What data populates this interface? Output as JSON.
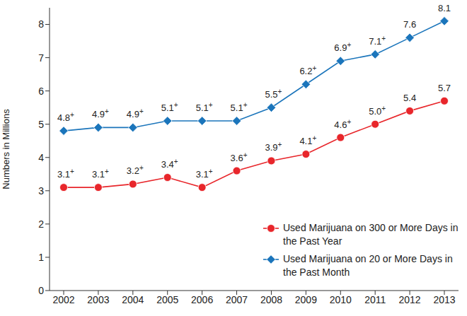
{
  "chart_data": {
    "type": "line",
    "y_label": "Numbers in Millions",
    "categories": [
      "2002",
      "2003",
      "2004",
      "2005",
      "2006",
      "2007",
      "2008",
      "2009",
      "2010",
      "2011",
      "2012",
      "2013"
    ],
    "ylim": [
      0,
      8.5
    ],
    "yticks": [
      0,
      1,
      2,
      3,
      4,
      5,
      6,
      7,
      8
    ],
    "grid": false,
    "legend": "lower right",
    "data_labels": true,
    "series": [
      {
        "name": "Used Marijuana on 300 or More Days in the Past Year",
        "color": "#e8262b",
        "marker": "circle",
        "values": [
          3.1,
          3.1,
          3.2,
          3.4,
          3.1,
          3.6,
          3.9,
          4.1,
          4.6,
          5.0,
          5.4,
          5.7
        ],
        "value_labels": [
          "3.1+",
          "3.1+",
          "3.2+",
          "3.4+",
          "3.1+",
          "3.6+",
          "3.9+",
          "4.1+",
          "4.6+",
          "5.0+",
          "5.4",
          "5.7"
        ]
      },
      {
        "name": "Used Marijuana on 20 or More Days in the Past Month",
        "color": "#1b75bb",
        "marker": "diamond",
        "values": [
          4.8,
          4.9,
          4.9,
          5.1,
          5.1,
          5.1,
          5.5,
          6.2,
          6.9,
          7.1,
          7.6,
          8.1
        ],
        "value_labels": [
          "4.8+",
          "4.9+",
          "4.9+",
          "5.1+",
          "5.1+",
          "5.1+",
          "5.5+",
          "6.2+",
          "6.9+",
          "7.1+",
          "7.6",
          "8.1"
        ]
      }
    ]
  }
}
